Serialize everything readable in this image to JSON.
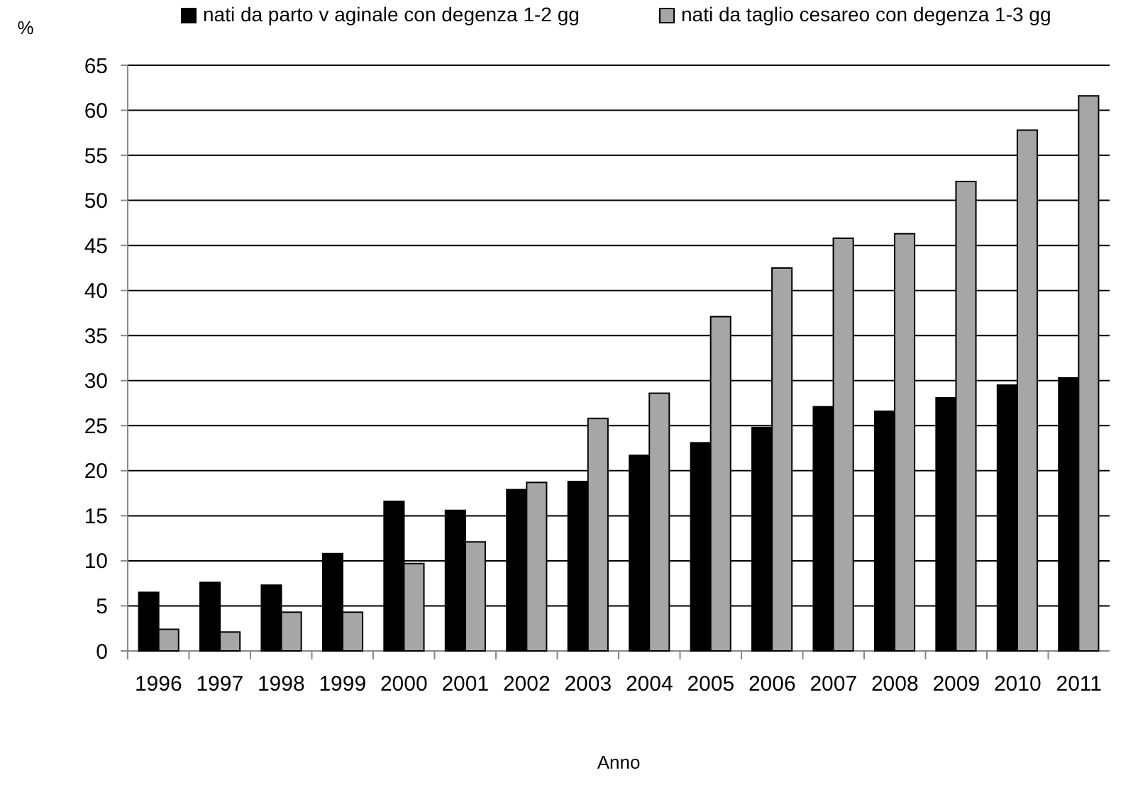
{
  "chart_data": {
    "type": "bar",
    "xlabel": "Anno",
    "ylabel": "%",
    "categories": [
      "1996",
      "1997",
      "1998",
      "1999",
      "2000",
      "2001",
      "2002",
      "2003",
      "2004",
      "2005",
      "2006",
      "2007",
      "2008",
      "2009",
      "2010",
      "2011"
    ],
    "series": [
      {
        "name": "nati da parto v aginale con degenza 1-2 gg",
        "color": "#000000",
        "values": [
          6.5,
          7.6,
          7.3,
          10.8,
          16.6,
          15.6,
          17.9,
          18.8,
          21.7,
          23.1,
          24.8,
          27.1,
          26.6,
          28.1,
          29.5,
          30.3
        ]
      },
      {
        "name": "nati da taglio cesareo con degenza 1-3 gg",
        "color": "#a6a6a6",
        "values": [
          2.4,
          2.1,
          4.3,
          4.3,
          9.7,
          12.1,
          18.7,
          25.8,
          28.6,
          37.1,
          42.5,
          45.8,
          46.3,
          52.1,
          57.8,
          61.6
        ]
      }
    ],
    "ylim": [
      0,
      65
    ],
    "yticks": [
      0,
      5,
      10,
      15,
      20,
      25,
      30,
      35,
      40,
      45,
      50,
      55,
      60,
      65
    ],
    "grid": "y",
    "legend": "top"
  }
}
